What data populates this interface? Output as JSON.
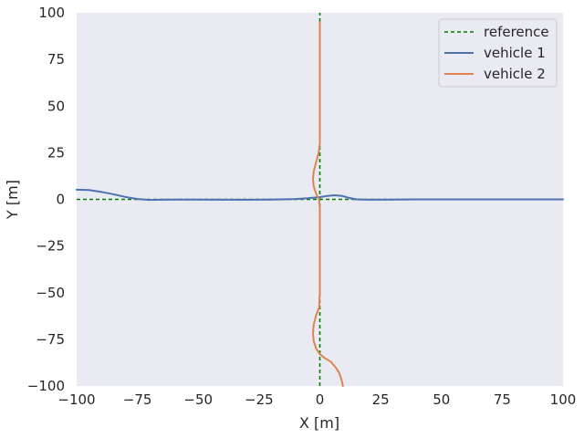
{
  "chart_data": {
    "type": "line",
    "title": "",
    "xlabel": "X [m]",
    "ylabel": "Y [m]",
    "xlim": [
      -100,
      100
    ],
    "ylim": [
      -100,
      100
    ],
    "x_ticks": [
      -100,
      -75,
      -50,
      -25,
      0,
      25,
      50,
      75,
      100
    ],
    "y_ticks": [
      -100,
      -75,
      -50,
      -25,
      0,
      25,
      50,
      75,
      100
    ],
    "x_tick_labels": [
      "−100",
      "−75",
      "−50",
      "−25",
      "0",
      "25",
      "50",
      "75",
      "100"
    ],
    "y_tick_labels": [
      "−100",
      "−75",
      "−50",
      "−25",
      "0",
      "25",
      "50",
      "75",
      "100"
    ],
    "grid": false,
    "background": "#eaeaf2",
    "legend_position": "top-right",
    "series": [
      {
        "name": "reference",
        "style": "dashed",
        "color": "#008000",
        "segments": [
          {
            "x": [
              -100,
              100
            ],
            "y": [
              0,
              0
            ]
          },
          {
            "x": [
              0,
              0
            ],
            "y": [
              -100,
              100
            ]
          }
        ]
      },
      {
        "name": "vehicle 1",
        "style": "solid",
        "color": "#4c72b0",
        "x": [
          -100,
          -95,
          -90,
          -85,
          -80,
          -75,
          -70,
          -65,
          -60,
          -50,
          -40,
          -30,
          -20,
          -10,
          -5,
          0,
          3,
          6,
          9,
          12,
          15,
          20,
          30,
          40,
          60,
          80,
          100
        ],
        "y": [
          5.2,
          5,
          4,
          2.8,
          1.3,
          0.2,
          -0.3,
          -0.2,
          -0.1,
          -0.1,
          -0.2,
          -0.2,
          -0.1,
          0.2,
          0.6,
          1.2,
          1.8,
          2.2,
          1.9,
          0.8,
          0,
          -0.2,
          -0.1,
          0,
          0,
          0,
          0
        ]
      },
      {
        "name": "vehicle 2",
        "style": "solid",
        "color": "#dd8452",
        "x": [
          9.5,
          9,
          8,
          6.5,
          4.5,
          2,
          0,
          -1.5,
          -2.5,
          -2.8,
          -2.5,
          -1.5,
          -0.3,
          0,
          0,
          0,
          0,
          -0.3,
          -1.5,
          -2.5,
          -2.8,
          -2.5,
          -1.5,
          -0.5,
          0,
          0,
          0
        ],
        "y": [
          -100,
          -97,
          -93,
          -90,
          -87,
          -85,
          -83,
          -80,
          -76,
          -72,
          -67,
          -62,
          -58,
          -50,
          -30,
          -15,
          -5,
          0,
          3,
          7,
          11,
          15,
          20,
          25,
          30,
          60,
          95
        ]
      }
    ]
  }
}
